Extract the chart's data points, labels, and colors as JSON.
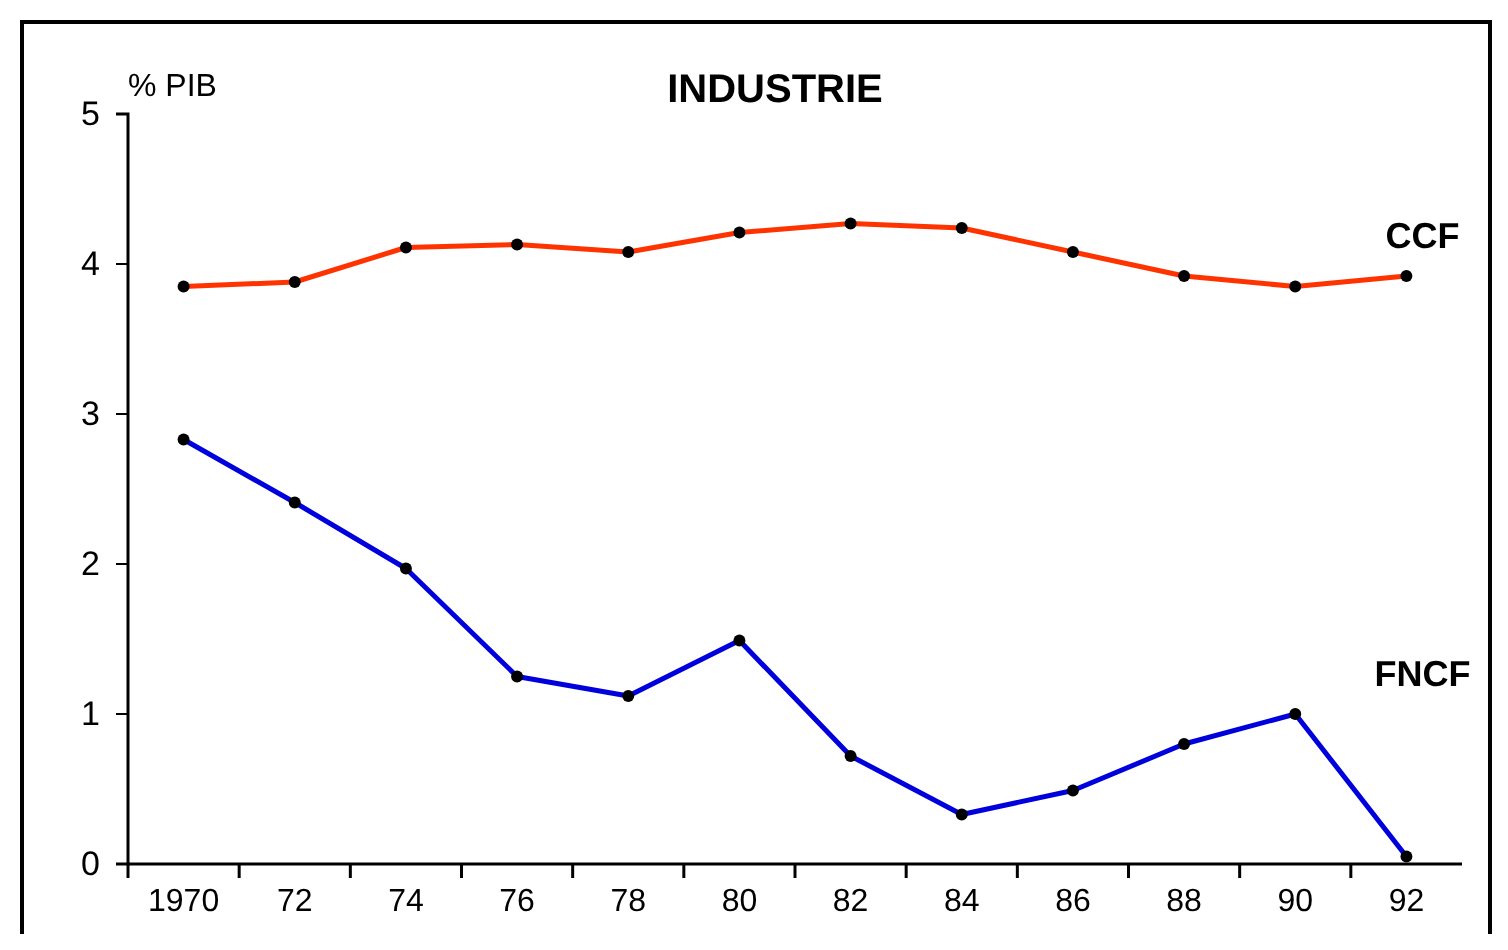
{
  "chart_data": {
    "type": "line",
    "title": "INDUSTRIE",
    "ylabel": "% PIB",
    "categories": [
      "1970",
      "72",
      "74",
      "76",
      "78",
      "80",
      "82",
      "84",
      "86",
      "88",
      "90",
      "92"
    ],
    "series": [
      {
        "name": "CCF",
        "color": "#ff3300",
        "values": [
          3.85,
          3.88,
          4.11,
          4.13,
          4.08,
          4.21,
          4.27,
          4.24,
          4.08,
          3.92,
          3.85,
          3.92
        ]
      },
      {
        "name": "FNCF",
        "color": "#0000dd",
        "values": [
          2.83,
          2.41,
          1.97,
          1.25,
          1.12,
          1.49,
          0.72,
          0.33,
          0.49,
          0.8,
          1.0,
          0.05
        ]
      }
    ],
    "ylim": [
      0,
      5
    ],
    "yticks": [
      0,
      1,
      2,
      3,
      4,
      5
    ],
    "grid": false,
    "legend": false,
    "marker": "circle",
    "line_style": "solid"
  }
}
